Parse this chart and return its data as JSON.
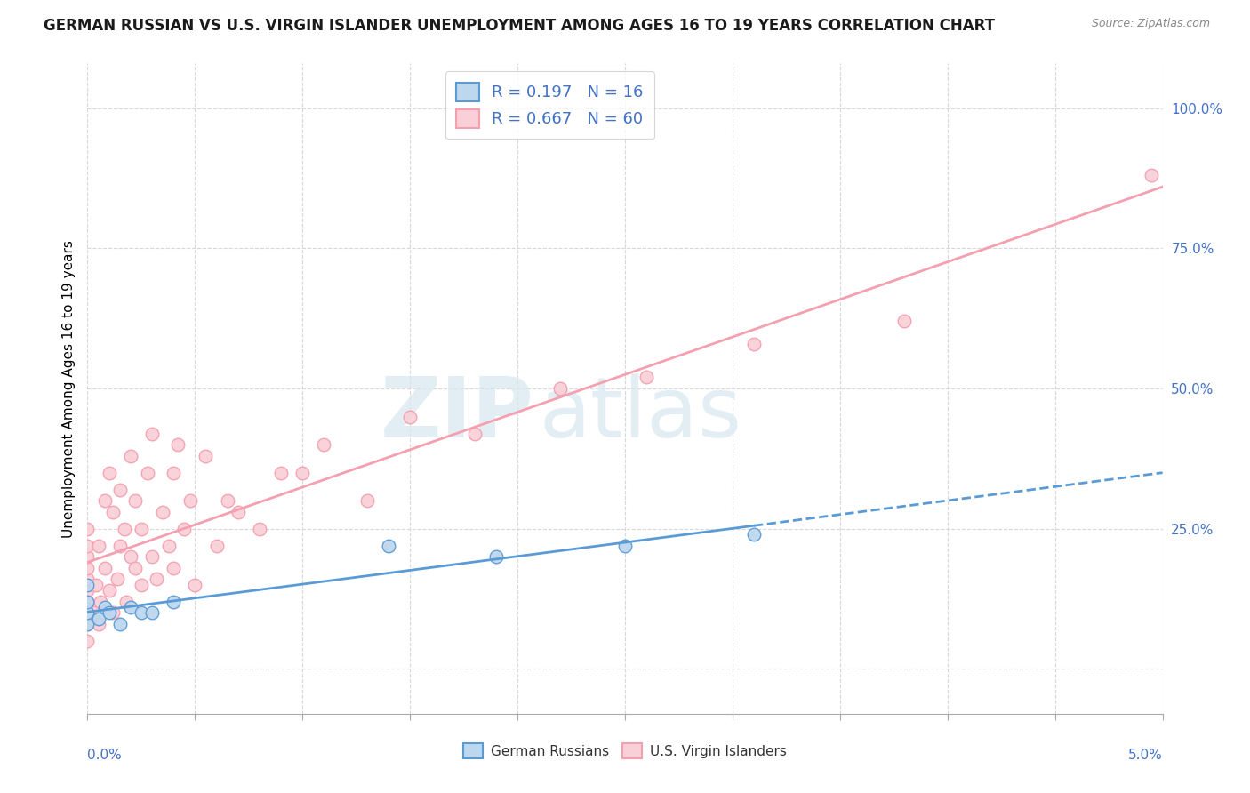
{
  "title": "GERMAN RUSSIAN VS U.S. VIRGIN ISLANDER UNEMPLOYMENT AMONG AGES 16 TO 19 YEARS CORRELATION CHART",
  "source": "Source: ZipAtlas.com",
  "ylabel": "Unemployment Among Ages 16 to 19 years",
  "xlim": [
    0.0,
    5.0
  ],
  "ylim": [
    -8.0,
    108.0
  ],
  "blue_color": "#5b9bd5",
  "blue_fill": "#bdd7ee",
  "pink_color": "#f4a0b0",
  "pink_fill": "#f9d0d8",
  "blue_r": "0.197",
  "blue_n": "16",
  "pink_r": "0.667",
  "pink_n": "60",
  "watermark_zip": "ZIP",
  "watermark_atlas": "atlas",
  "title_fontsize": 12,
  "legend_fontsize": 13,
  "blue_x": [
    0.0,
    0.0,
    0.0,
    0.0,
    0.05,
    0.08,
    0.1,
    0.15,
    0.2,
    0.25,
    0.3,
    0.4,
    1.4,
    1.9,
    2.5,
    3.1
  ],
  "blue_y": [
    8,
    10,
    12,
    15,
    9,
    11,
    10,
    8,
    11,
    10,
    10,
    12,
    22,
    20,
    22,
    24
  ],
  "pink_x": [
    0.0,
    0.0,
    0.0,
    0.0,
    0.0,
    0.0,
    0.0,
    0.0,
    0.0,
    0.0,
    0.03,
    0.04,
    0.05,
    0.05,
    0.06,
    0.08,
    0.08,
    0.1,
    0.1,
    0.12,
    0.12,
    0.14,
    0.15,
    0.15,
    0.17,
    0.18,
    0.2,
    0.2,
    0.22,
    0.22,
    0.25,
    0.25,
    0.28,
    0.3,
    0.3,
    0.32,
    0.35,
    0.38,
    0.4,
    0.4,
    0.42,
    0.45,
    0.48,
    0.5,
    0.55,
    0.6,
    0.65,
    0.7,
    0.8,
    0.9,
    1.0,
    1.1,
    1.3,
    1.5,
    1.8,
    2.2,
    2.6,
    3.1,
    3.8,
    4.95
  ],
  "pink_y": [
    5,
    8,
    10,
    12,
    14,
    16,
    18,
    20,
    22,
    25,
    10,
    15,
    8,
    22,
    12,
    18,
    30,
    14,
    35,
    10,
    28,
    16,
    32,
    22,
    25,
    12,
    20,
    38,
    18,
    30,
    25,
    15,
    35,
    20,
    42,
    16,
    28,
    22,
    35,
    18,
    40,
    25,
    30,
    15,
    38,
    22,
    30,
    28,
    25,
    35,
    35,
    40,
    30,
    45,
    42,
    50,
    52,
    58,
    62,
    88
  ]
}
